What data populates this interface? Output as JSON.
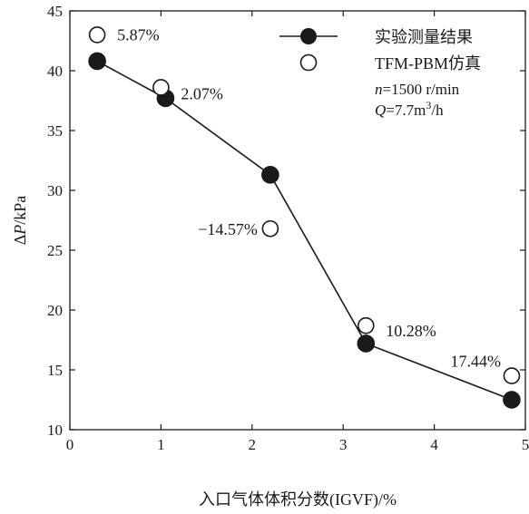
{
  "chart_data": {
    "type": "line",
    "xlabel": "入口气体体积分数(IGVF)/%",
    "ylabel": {
      "prefix": "Δ",
      "var": "P",
      "suffix": "/kPa"
    },
    "xlim": [
      0,
      5
    ],
    "ylim": [
      10,
      45
    ],
    "xticks": [
      0,
      1,
      2,
      3,
      4,
      5
    ],
    "yticks": [
      10,
      15,
      20,
      25,
      30,
      35,
      40,
      45
    ],
    "grid": false,
    "legend_position": "top-right",
    "series": [
      {
        "name": "实验测量结果",
        "marker": "filled-circle",
        "line": true,
        "color": "#1a1a1a",
        "x": [
          0.3,
          1.05,
          2.2,
          3.25,
          4.85
        ],
        "y": [
          40.8,
          37.7,
          31.3,
          17.2,
          12.5
        ]
      },
      {
        "name": "TFM-PBM仿真",
        "marker": "open-circle",
        "line": false,
        "color": "#1a1a1a",
        "x": [
          0.3,
          1.0,
          2.2,
          3.25,
          4.85
        ],
        "y": [
          43.0,
          38.6,
          26.8,
          18.7,
          14.5
        ]
      }
    ],
    "annotations": [
      {
        "text": "5.87%",
        "x": 0.3,
        "y": 43.0
      },
      {
        "text": "2.07%",
        "x": 1.0,
        "y": 38.6
      },
      {
        "text": "−14.57%",
        "x": 2.2,
        "y": 26.8
      },
      {
        "text": "10.28%",
        "x": 3.25,
        "y": 18.7
      },
      {
        "text": "17.44%",
        "x": 4.85,
        "y": 14.5
      }
    ],
    "conditions": {
      "n_var": "n",
      "n_value": "=1500 r/min",
      "q_var": "Q",
      "q_value": "=7.7m",
      "q_exp": "3",
      "q_unit": "/h"
    }
  }
}
